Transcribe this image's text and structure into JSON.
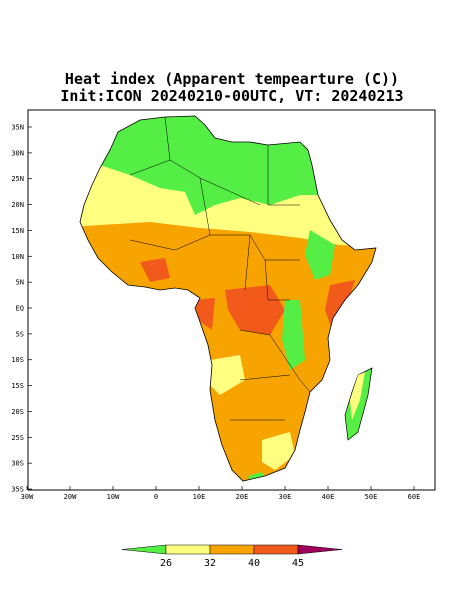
{
  "title": "Heat index (Apparent tempearture (C))",
  "subtitle": "Init:ICON 20240210-00UTC, VT: 20240213",
  "lat_labels": [
    "35N",
    "30N",
    "25N",
    "20N",
    "15N",
    "10N",
    "5N",
    "EQ",
    "5S",
    "10S",
    "15S",
    "20S",
    "25S",
    "30S",
    "35S"
  ],
  "lon_labels": [
    "30W",
    "20W",
    "10W",
    "0",
    "10E",
    "20E",
    "30E",
    "40E",
    "50E",
    "60E"
  ],
  "colorbar": {
    "ticks": [
      26,
      32,
      40,
      45
    ],
    "colors": [
      "#55ee44",
      "#ffff80",
      "#f7a400",
      "#f25a1c",
      "#a0005a"
    ]
  }
}
